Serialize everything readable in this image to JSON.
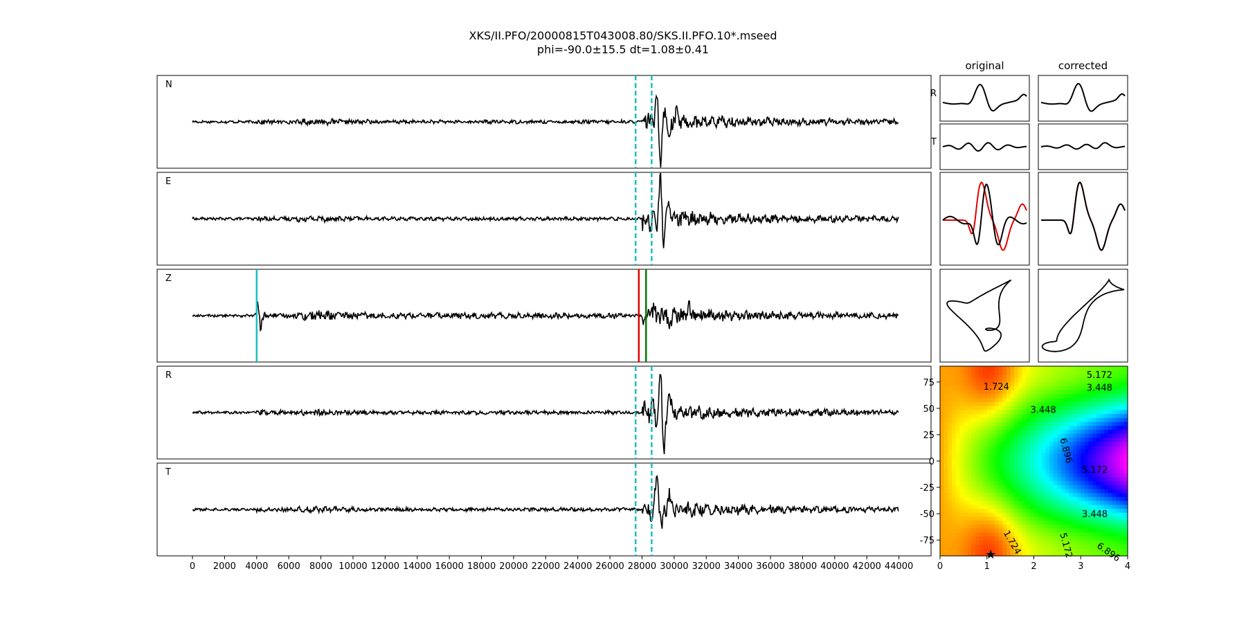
{
  "title": "XKS/II.PFO/20000815T043008.80/SKS.II.PFO.10*.mseed",
  "subtitle": "phi=-90.0±15.5 dt=1.08±0.41",
  "colors": {
    "trace": "#000000",
    "window": "#17bfbf",
    "pick_cyan": "#17bfbf",
    "pick_red": "#e00000",
    "pick_green": "#007a00",
    "overlay_red": "#e00000"
  },
  "chart_data": [
    {
      "type": "line",
      "name": "seismograms",
      "panels": [
        "N",
        "E",
        "Z",
        "R",
        "T"
      ],
      "xlim": [
        -2200,
        46000
      ],
      "x_ticks": [
        0,
        2000,
        4000,
        6000,
        8000,
        10000,
        12000,
        14000,
        16000,
        18000,
        20000,
        22000,
        24000,
        26000,
        28000,
        30000,
        32000,
        34000,
        36000,
        38000,
        40000,
        42000,
        44000
      ],
      "window": [
        27600,
        28600
      ],
      "window_panels": [
        "N",
        "E",
        "R",
        "T"
      ],
      "picks": [
        {
          "panel": "Z",
          "x": 4000,
          "color": "#17bfbf"
        },
        {
          "panel": "Z",
          "x": 27800,
          "color": "#e00000"
        },
        {
          "panel": "Z",
          "x": 28250,
          "color": "#007a00"
        }
      ],
      "trace_x_range": [
        0,
        44000
      ],
      "grid": false
    },
    {
      "type": "line",
      "name": "waveform-comparison",
      "column_titles": [
        "original",
        "corrected"
      ],
      "row_labels": [
        "R",
        "T"
      ],
      "rows": [
        "R",
        "T",
        "overlay",
        "particle-motion"
      ]
    },
    {
      "type": "heatmap",
      "name": "energy-grid",
      "xlim": [
        0,
        4
      ],
      "ylim": [
        -90,
        90
      ],
      "x_ticks": [
        0,
        1,
        2,
        3,
        4
      ],
      "y_ticks": [
        75,
        50,
        25,
        0,
        -25,
        -50,
        -75
      ],
      "contour_labels": [
        {
          "text": "5.172",
          "x": 3.4,
          "y": 82,
          "rot": 0
        },
        {
          "text": "3.448",
          "x": 3.4,
          "y": 70,
          "rot": 0
        },
        {
          "text": "1.724",
          "x": 1.2,
          "y": 71,
          "rot": 0
        },
        {
          "text": "3.448",
          "x": 2.2,
          "y": 49,
          "rot": 0
        },
        {
          "text": "6.896",
          "x": 2.7,
          "y": 10,
          "rot": 75
        },
        {
          "text": "5.172",
          "x": 3.3,
          "y": -8,
          "rot": 0
        },
        {
          "text": "3.448",
          "x": 3.3,
          "y": -50,
          "rot": 0
        },
        {
          "text": "1.724",
          "x": 1.55,
          "y": -77,
          "rot": 60
        },
        {
          "text": "5.172",
          "x": 2.7,
          "y": -80,
          "rot": 75
        },
        {
          "text": "6.896",
          "x": 3.6,
          "y": -86,
          "rot": 35
        }
      ],
      "best": {
        "x": 1.08,
        "y": -90
      }
    }
  ]
}
